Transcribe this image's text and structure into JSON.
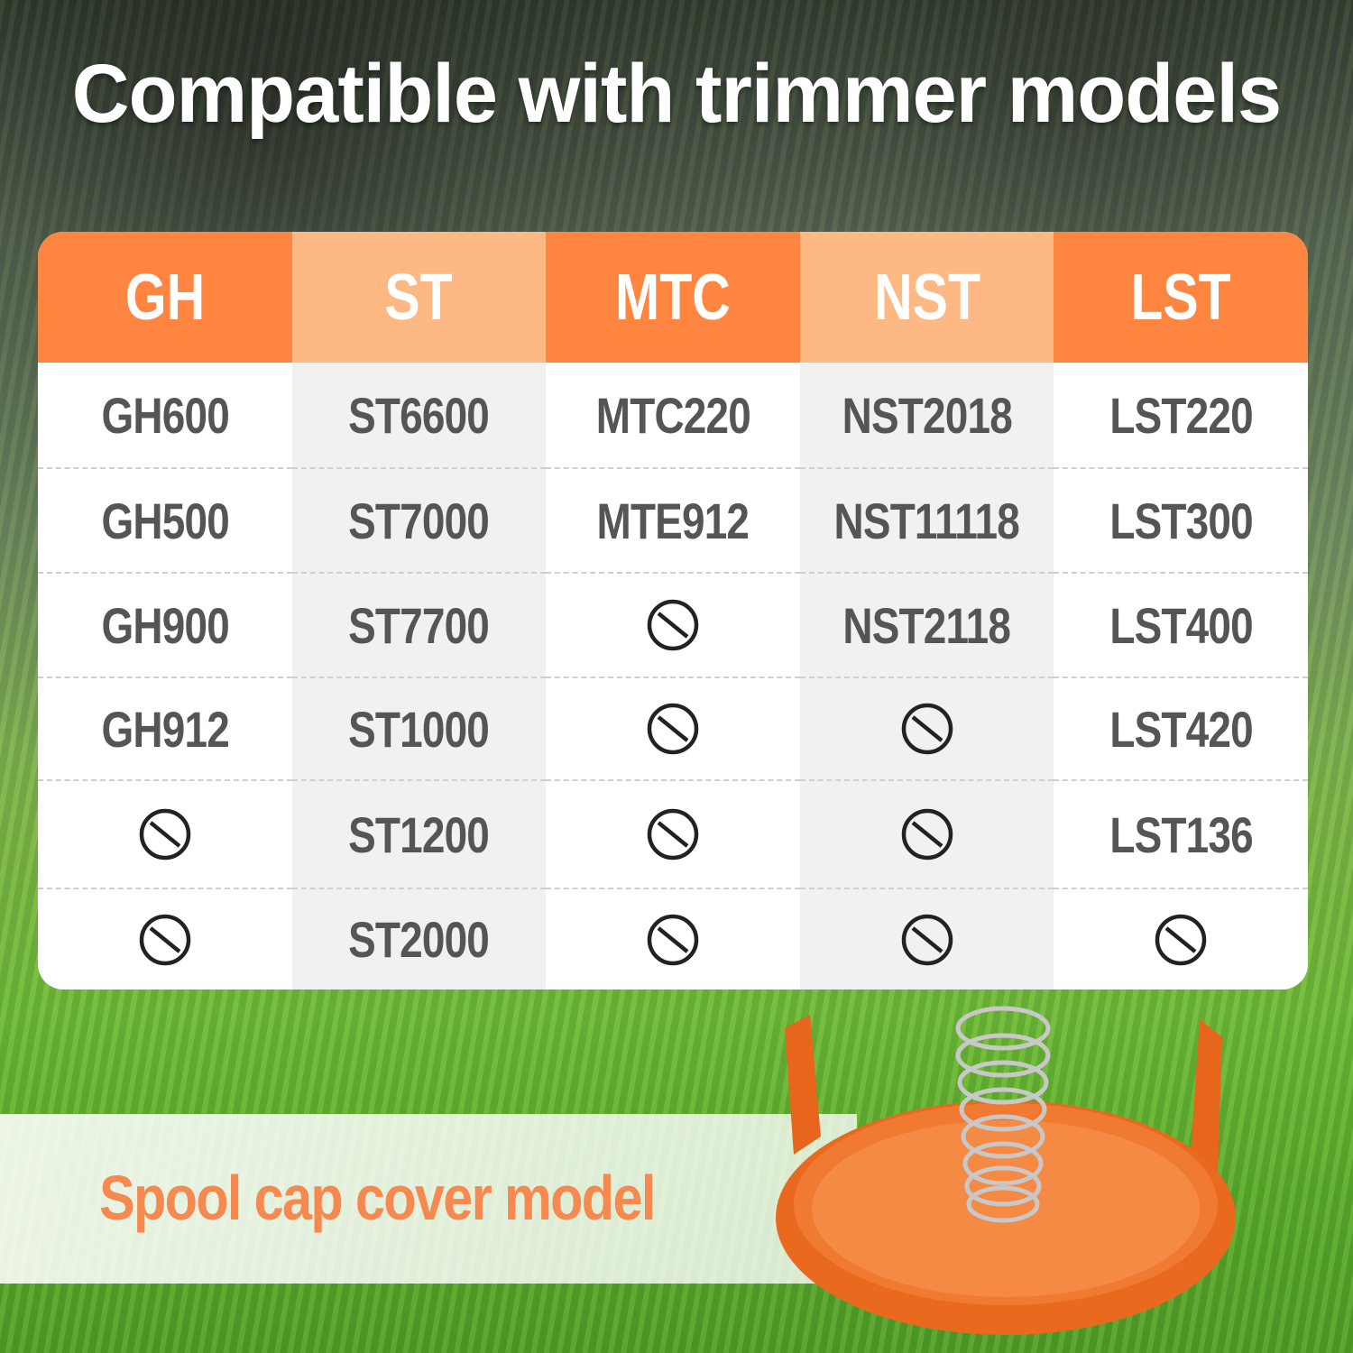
{
  "title": "Compatible with trimmer models",
  "colors": {
    "header_dark": "#ff8540",
    "header_light": "#fdb884",
    "text": "#555555",
    "banner_text": "#f5894f"
  },
  "unavailable_icon": "prohibited-icon",
  "table": {
    "columns": [
      {
        "header": "GH",
        "models": [
          "GH600",
          "GH500",
          "GH900",
          "GH912",
          null,
          null
        ]
      },
      {
        "header": "ST",
        "models": [
          "ST6600",
          "ST7000",
          "ST7700",
          "ST1000",
          "ST1200",
          "ST2000"
        ]
      },
      {
        "header": "MTC",
        "models": [
          "MTC220",
          "MTE912",
          null,
          null,
          null,
          null
        ]
      },
      {
        "header": "NST",
        "models": [
          "NST2018",
          "NST11118",
          "NST2118",
          null,
          null,
          null
        ]
      },
      {
        "header": "LST",
        "models": [
          "LST220",
          "LST300",
          "LST400",
          "LST420",
          "LST136",
          null
        ]
      }
    ]
  },
  "banner": {
    "label": "Spool cap cover model"
  }
}
